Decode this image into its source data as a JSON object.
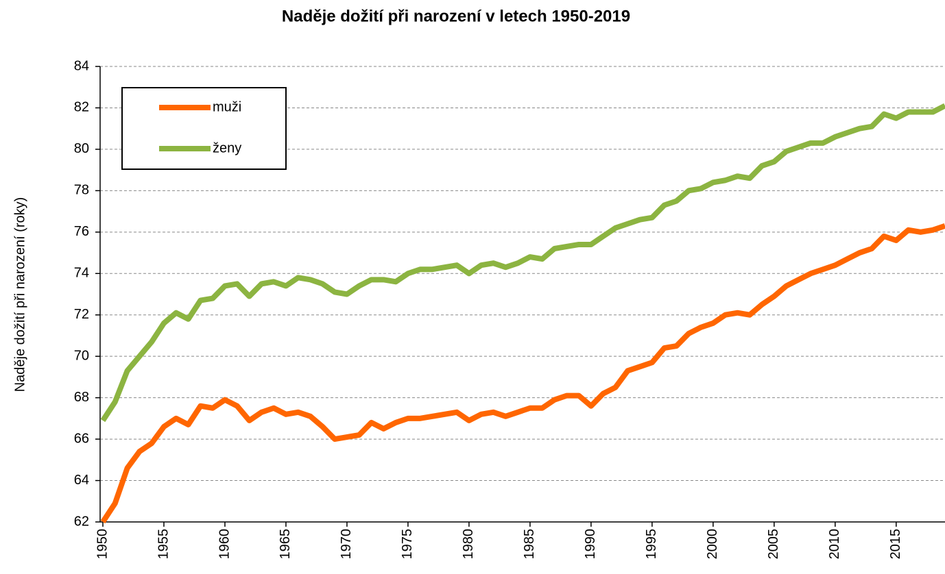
{
  "chart_data": {
    "type": "line",
    "title": "Naděje dožití při narození v letech 1950-2019",
    "y_label": "Naděje dožití při narození (roky)",
    "x": [
      1950,
      1951,
      1952,
      1953,
      1954,
      1955,
      1956,
      1957,
      1958,
      1959,
      1960,
      1961,
      1962,
      1963,
      1964,
      1965,
      1966,
      1967,
      1968,
      1969,
      1970,
      1971,
      1972,
      1973,
      1974,
      1975,
      1976,
      1977,
      1978,
      1979,
      1980,
      1981,
      1982,
      1983,
      1984,
      1985,
      1986,
      1987,
      1988,
      1989,
      1990,
      1991,
      1992,
      1993,
      1994,
      1995,
      1996,
      1997,
      1998,
      1999,
      2000,
      2001,
      2002,
      2003,
      2004,
      2005,
      2006,
      2007,
      2008,
      2009,
      2010,
      2011,
      2012,
      2013,
      2014,
      2015,
      2016,
      2017,
      2018,
      2019
    ],
    "series": [
      {
        "name": "muži",
        "color": "#ff6600",
        "values": [
          62.0,
          62.9,
          64.6,
          65.4,
          65.8,
          66.6,
          67.0,
          66.7,
          67.6,
          67.5,
          67.9,
          67.6,
          66.9,
          67.3,
          67.5,
          67.2,
          67.3,
          67.1,
          66.6,
          66.0,
          66.1,
          66.2,
          66.8,
          66.5,
          66.8,
          67.0,
          67.0,
          67.1,
          67.2,
          67.3,
          66.9,
          67.2,
          67.3,
          67.1,
          67.3,
          67.5,
          67.5,
          67.9,
          68.1,
          68.1,
          67.6,
          68.2,
          68.5,
          69.3,
          69.5,
          69.7,
          70.4,
          70.5,
          71.1,
          71.4,
          71.6,
          72.0,
          72.1,
          72.0,
          72.5,
          72.9,
          73.4,
          73.7,
          74.0,
          74.2,
          74.4,
          74.7,
          75.0,
          75.2,
          75.8,
          75.6,
          76.1,
          76.0,
          76.1,
          76.3
        ]
      },
      {
        "name": "ženy",
        "color": "#8cb441",
        "values": [
          66.9,
          67.8,
          69.3,
          70.0,
          70.7,
          71.6,
          72.1,
          71.8,
          72.7,
          72.8,
          73.4,
          73.5,
          72.9,
          73.5,
          73.6,
          73.4,
          73.8,
          73.7,
          73.5,
          73.1,
          73.0,
          73.4,
          73.7,
          73.7,
          73.6,
          74.0,
          74.2,
          74.2,
          74.3,
          74.4,
          74.0,
          74.4,
          74.5,
          74.3,
          74.5,
          74.8,
          74.7,
          75.2,
          75.3,
          75.4,
          75.4,
          75.8,
          76.2,
          76.4,
          76.6,
          76.7,
          77.3,
          77.5,
          78.0,
          78.1,
          78.4,
          78.5,
          78.7,
          78.6,
          79.2,
          79.4,
          79.9,
          80.1,
          80.3,
          80.3,
          80.6,
          80.8,
          81.0,
          81.1,
          81.7,
          81.5,
          81.8,
          81.8,
          81.8,
          82.1
        ]
      }
    ],
    "xlim": [
      1950,
      2019
    ],
    "xticks": [
      1950,
      1955,
      1960,
      1965,
      1970,
      1975,
      1980,
      1985,
      1990,
      1995,
      2000,
      2005,
      2010,
      2015
    ],
    "ylim": [
      62,
      84
    ],
    "yticks": [
      62,
      64,
      66,
      68,
      70,
      72,
      74,
      76,
      78,
      80,
      82,
      84
    ],
    "grid": true,
    "legend": "upper left"
  }
}
